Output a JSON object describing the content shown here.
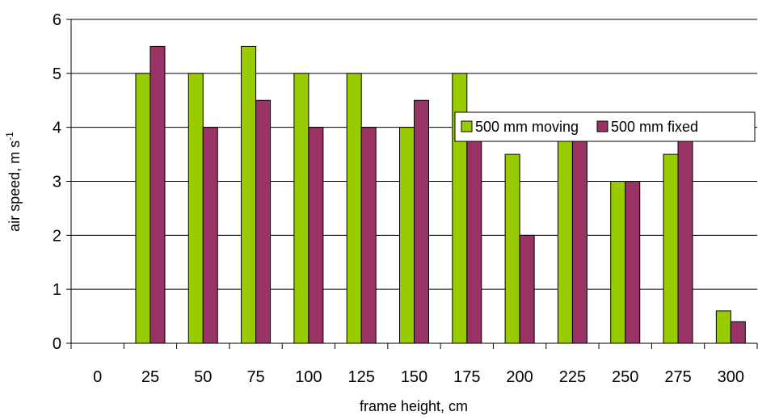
{
  "chart_data": {
    "type": "bar",
    "title": "",
    "xlabel": "frame height, cm",
    "ylabel": "air speed, m s",
    "ylabel_superscript": "-1",
    "categories": [
      "0",
      "25",
      "50",
      "75",
      "100",
      "125",
      "150",
      "175",
      "200",
      "225",
      "250",
      "275",
      "300"
    ],
    "series": [
      {
        "name": "500 mm moving",
        "color": "#99CC00",
        "values": [
          0,
          5,
          5,
          5.5,
          5,
          5,
          4,
          5,
          3.5,
          4,
          3,
          3.5,
          0.6
        ]
      },
      {
        "name": "500 mm fixed",
        "color": "#993366",
        "values": [
          0,
          5.5,
          4,
          4.5,
          4,
          4,
          4.5,
          4,
          2,
          4,
          3,
          4,
          0.4
        ]
      }
    ],
    "ylim": [
      0,
      6
    ],
    "yticks": [
      "0",
      "1",
      "2",
      "3",
      "4",
      "5",
      "6"
    ],
    "grid": true,
    "legend": "upper-right"
  }
}
